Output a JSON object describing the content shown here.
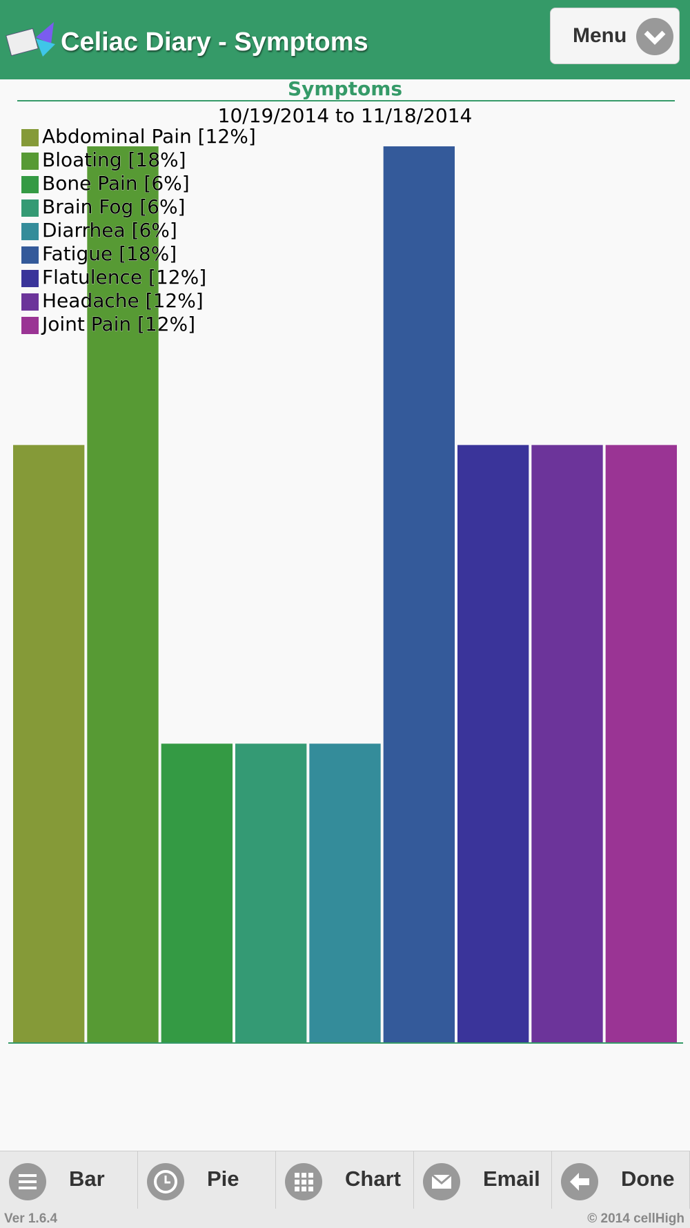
{
  "header": {
    "title": "Celiac Diary - Symptoms",
    "menu": "Menu"
  },
  "chart_data": {
    "type": "bar",
    "title": "Symptoms",
    "subtitle": "10/19/2014 to 11/18/2014",
    "categories": [
      "Abdominal Pain [12%]",
      "Bloating [18%]",
      "Bone Pain [6%]",
      "Brain Fog [6%]",
      "Diarrhea [6%]",
      "Fatigue [18%]",
      "Flatulence [12%]",
      "Headache [12%]",
      "Joint Pain [12%]"
    ],
    "values": [
      12,
      18,
      6,
      6,
      6,
      18,
      12,
      12,
      12
    ],
    "colors": [
      "#859a38",
      "#579a34",
      "#349a44",
      "#349a74",
      "#348c9a",
      "#345a9a",
      "#3a349a",
      "#6c349a",
      "#9a3494"
    ],
    "legend": "top-left"
  },
  "footer": {
    "tabs": [
      "Bar",
      "Pie",
      "Chart",
      "Email",
      "Done"
    ],
    "version": "Ver 1.6.4",
    "copyright": "© 2014 cellHigh"
  }
}
